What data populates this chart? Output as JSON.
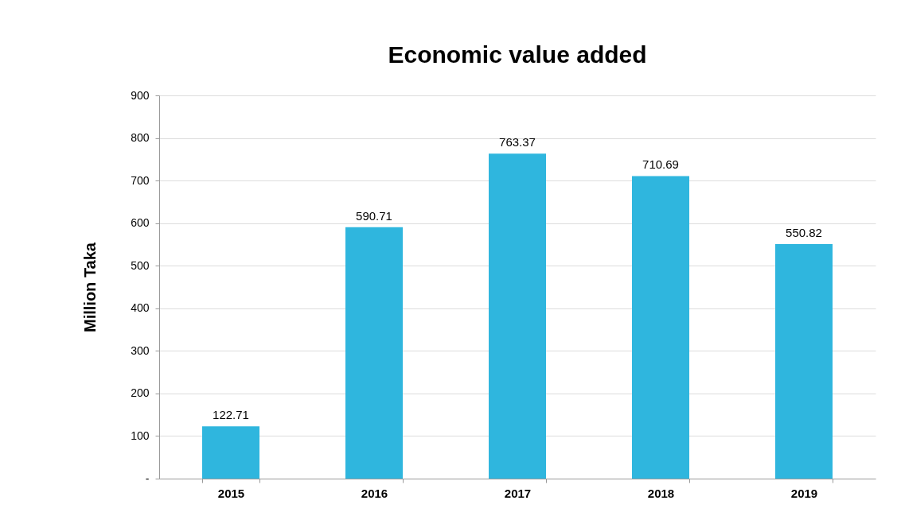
{
  "chart_data": {
    "type": "bar",
    "title": "Economic value added",
    "ylabel": "Million Taka",
    "categories": [
      "2015",
      "2016",
      "2017",
      "2018",
      "2019"
    ],
    "values": [
      122.71,
      590.71,
      763.37,
      710.69,
      550.82
    ],
    "color": "#2fb6de",
    "ylim": [
      0,
      900
    ],
    "yticks": [
      {
        "value": 0,
        "label": "-"
      },
      100,
      200,
      300,
      400,
      500,
      600,
      700,
      800,
      900
    ],
    "grid": "y",
    "data_labels": true
  }
}
